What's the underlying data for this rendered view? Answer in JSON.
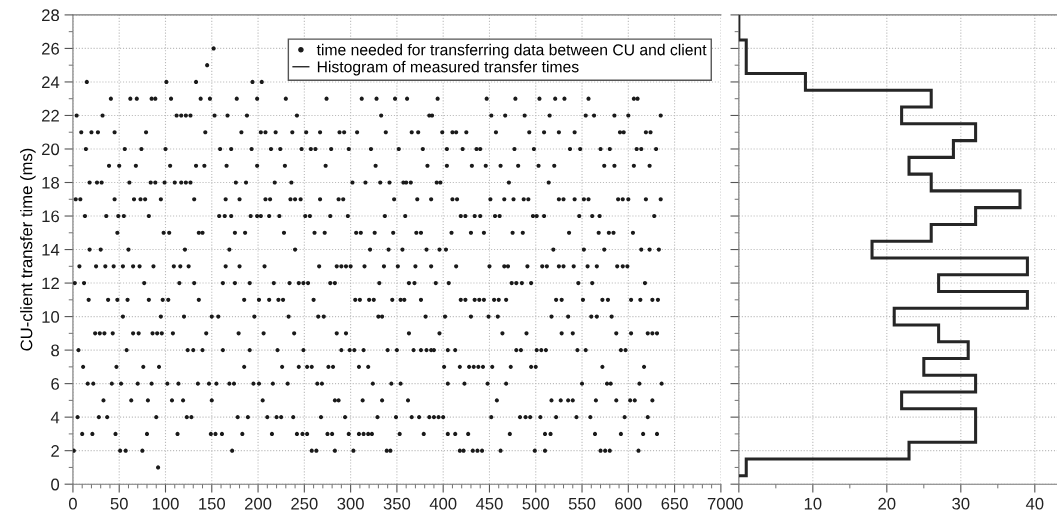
{
  "chart_data": [
    {
      "type": "scatter",
      "ylabel": "CU-client transfer time (ms)",
      "xlim": [
        0,
        700
      ],
      "xticks": [
        0,
        50,
        100,
        150,
        200,
        250,
        300,
        350,
        400,
        450,
        500,
        550,
        600,
        650,
        700
      ],
      "ylim": [
        0,
        28
      ],
      "yticks": [
        0,
        2,
        4,
        6,
        8,
        10,
        12,
        14,
        16,
        18,
        20,
        22,
        24,
        26,
        28
      ],
      "grid": true,
      "legend": "top right",
      "marker": "circle",
      "series": [
        {
          "name": "time needed for transferring data between CU and client",
          "color": "#1a1a1a",
          "x": [
            152,
            145,
            15,
            101,
            133,
            194,
            204,
            41,
            62,
            69,
            85,
            89,
            106,
            138,
            148,
            177,
            199,
            230,
            274,
            312,
            328,
            348,
            361,
            394,
            447,
            478,
            504,
            521,
            531,
            557,
            606,
            610,
            4,
            32,
            112,
            117,
            122,
            127,
            153,
            167,
            188,
            242,
            333,
            385,
            388,
            452,
            467,
            488,
            515,
            554,
            563,
            585,
            600,
            635,
            9,
            20,
            27,
            45,
            79,
            143,
            182,
            203,
            208,
            219,
            237,
            252,
            267,
            288,
            293,
            307,
            338,
            366,
            373,
            399,
            410,
            414,
            425,
            457,
            493,
            509,
            525,
            542,
            591,
            595,
            619,
            624,
            14,
            56,
            74,
            100,
            159,
            171,
            193,
            214,
            224,
            247,
            257,
            262,
            279,
            298,
            322,
            352,
            378,
            404,
            421,
            436,
            440,
            477,
            498,
            537,
            548,
            570,
            580,
            609,
            614,
            630,
            39,
            50,
            68,
            105,
            133,
            142,
            166,
            199,
            229,
            273,
            327,
            383,
            404,
            431,
            446,
            462,
            481,
            503,
            520,
            574,
            585,
            606,
            623,
            18,
            26,
            31,
            61,
            84,
            89,
            99,
            110,
            117,
            122,
            127,
            176,
            187,
            218,
            236,
            302,
            316,
            332,
            342,
            357,
            360,
            365,
            393,
            397,
            471,
            514,
            3,
            8,
            45,
            66,
            73,
            78,
            95,
            131,
            165,
            180,
            208,
            213,
            235,
            240,
            246,
            267,
            287,
            292,
            347,
            372,
            387,
            410,
            415,
            451,
            466,
            476,
            487,
            492,
            525,
            530,
            542,
            552,
            557,
            589,
            594,
            600,
            619,
            635,
            13,
            36,
            49,
            55,
            82,
            158,
            164,
            171,
            192,
            199,
            203,
            212,
            223,
            251,
            256,
            278,
            297,
            337,
            359,
            419,
            424,
            434,
            440,
            456,
            461,
            497,
            501,
            509,
            547,
            561,
            569,
            628,
            48,
            98,
            104,
            136,
            140,
            175,
            186,
            228,
            261,
            272,
            306,
            311,
            326,
            346,
            371,
            376,
            409,
            430,
            444,
            475,
            486,
            536,
            568,
            579,
            584,
            605,
            18,
            30,
            60,
            121,
            169,
            240,
            321,
            341,
            356,
            382,
            396,
            403,
            519,
            552,
            574,
            614,
            623,
            633,
            7,
            25,
            35,
            44,
            54,
            65,
            72,
            87,
            109,
            116,
            125,
            165,
            180,
            207,
            266,
            285,
            290,
            295,
            300,
            315,
            336,
            351,
            370,
            387,
            414,
            450,
            466,
            470,
            491,
            507,
            512,
            525,
            530,
            541,
            556,
            566,
            588,
            594,
            599,
            2,
            12,
            77,
            115,
            131,
            162,
            175,
            191,
            217,
            234,
            244,
            249,
            254,
            278,
            283,
            331,
            363,
            369,
            392,
            406,
            474,
            479,
            485,
            495,
            546,
            561,
            618,
            17,
            38,
            48,
            59,
            82,
            97,
            103,
            136,
            185,
            201,
            212,
            222,
            227,
            260,
            305,
            310,
            320,
            325,
            345,
            354,
            358,
            376,
            419,
            424,
            434,
            439,
            444,
            455,
            460,
            468,
            522,
            528,
            551,
            572,
            578,
            603,
            613,
            626,
            632,
            54,
            95,
            120,
            150,
            157,
            196,
            233,
            265,
            271,
            330,
            334,
            381,
            402,
            430,
            449,
            459,
            517,
            535,
            560,
            566,
            582,
            24,
            29,
            34,
            43,
            65,
            71,
            86,
            91,
            96,
            108,
            144,
            179,
            206,
            239,
            285,
            295,
            363,
            396,
            464,
            490,
            528,
            540,
            587,
            603,
            621,
            626,
            631,
            6,
            58,
            124,
            130,
            140,
            162,
            191,
            221,
            249,
            290,
            299,
            304,
            314,
            340,
            350,
            368,
            376,
            382,
            387,
            390,
            405,
            413,
            479,
            484,
            501,
            506,
            511,
            545,
            554,
            592,
            597,
            11,
            47,
            76,
            93,
            185,
            226,
            244,
            253,
            258,
            276,
            281,
            309,
            319,
            401,
            418,
            428,
            433,
            438,
            443,
            453,
            473,
            495,
            500,
            572,
            617,
            16,
            22,
            42,
            52,
            70,
            85,
            102,
            114,
            135,
            147,
            155,
            169,
            174,
            195,
            201,
            216,
            232,
            264,
            269,
            324,
            344,
            354,
            405,
            423,
            448,
            468,
            550,
            577,
            581,
            612,
            636,
            33,
            63,
            81,
            107,
            119,
            150,
            205,
            283,
            287,
            313,
            334,
            362,
            458,
            517,
            527,
            535,
            540,
            565,
            587,
            602,
            607,
            626,
            5,
            28,
            37,
            90,
            123,
            128,
            178,
            189,
            210,
            220,
            225,
            238,
            268,
            294,
            329,
            349,
            366,
            374,
            385,
            390,
            395,
            400,
            452,
            483,
            489,
            494,
            505,
            522,
            544,
            559,
            596,
            621,
            10,
            21,
            46,
            80,
            113,
            149,
            154,
            161,
            183,
            215,
            242,
            248,
            253,
            275,
            280,
            298,
            309,
            314,
            319,
            323,
            353,
            379,
            405,
            413,
            427,
            472,
            510,
            516,
            564,
            592,
            616,
            631,
            1,
            51,
            57,
            75,
            172,
            258,
            263,
            283,
            303,
            339,
            343,
            418,
            422,
            432,
            437,
            442,
            462,
            499,
            510,
            570,
            575,
            580,
            611,
            92
          ],
          "values": [
            26,
            25,
            24,
            24,
            24,
            24,
            24,
            23,
            23,
            23,
            23,
            23,
            23,
            23,
            23,
            23,
            23,
            23,
            23,
            23,
            23,
            23,
            23,
            23,
            23,
            23,
            23,
            23,
            23,
            23,
            23,
            23,
            22,
            22,
            22,
            22,
            22,
            22,
            22,
            22,
            22,
            22,
            22,
            22,
            22,
            22,
            22,
            22,
            22,
            22,
            22,
            22,
            22,
            22,
            21,
            21,
            21,
            21,
            21,
            21,
            21,
            21,
            21,
            21,
            21,
            21,
            21,
            21,
            21,
            21,
            21,
            21,
            21,
            21,
            21,
            21,
            21,
            21,
            21,
            21,
            21,
            21,
            21,
            21,
            21,
            21,
            20,
            20,
            20,
            20,
            20,
            20,
            20,
            20,
            20,
            20,
            20,
            20,
            20,
            20,
            20,
            20,
            20,
            20,
            20,
            20,
            20,
            20,
            20,
            20,
            20,
            20,
            20,
            20,
            20,
            20,
            19,
            19,
            19,
            19,
            19,
            19,
            19,
            19,
            19,
            19,
            19,
            19,
            19,
            19,
            19,
            19,
            19,
            19,
            19,
            19,
            19,
            19,
            19,
            18,
            18,
            18,
            18,
            18,
            18,
            18,
            18,
            18,
            18,
            18,
            18,
            18,
            18,
            18,
            18,
            18,
            18,
            18,
            18,
            18,
            18,
            18,
            18,
            18,
            18,
            17,
            17,
            17,
            17,
            17,
            17,
            17,
            17,
            17,
            17,
            17,
            17,
            17,
            17,
            17,
            17,
            17,
            17,
            17,
            17,
            17,
            17,
            17,
            17,
            17,
            17,
            17,
            17,
            17,
            17,
            17,
            17,
            17,
            17,
            17,
            17,
            17,
            17,
            16,
            16,
            16,
            16,
            16,
            16,
            16,
            16,
            16,
            16,
            16,
            16,
            16,
            16,
            16,
            16,
            16,
            16,
            16,
            16,
            16,
            16,
            16,
            16,
            16,
            16,
            16,
            16,
            16,
            16,
            16,
            16,
            15,
            15,
            15,
            15,
            15,
            15,
            15,
            15,
            15,
            15,
            15,
            15,
            15,
            15,
            15,
            15,
            15,
            15,
            15,
            15,
            15,
            15,
            15,
            15,
            15,
            15,
            14,
            14,
            14,
            14,
            14,
            14,
            14,
            14,
            14,
            14,
            14,
            14,
            14,
            14,
            14,
            14,
            14,
            14,
            13,
            13,
            13,
            13,
            13,
            13,
            13,
            13,
            13,
            13,
            13,
            13,
            13,
            13,
            13,
            13,
            13,
            13,
            13,
            13,
            13,
            13,
            13,
            13,
            13,
            13,
            13,
            13,
            13,
            13,
            13,
            13,
            13,
            13,
            13,
            13,
            13,
            13,
            13,
            12,
            12,
            12,
            12,
            12,
            12,
            12,
            12,
            12,
            12,
            12,
            12,
            12,
            12,
            12,
            12,
            12,
            12,
            12,
            12,
            12,
            12,
            12,
            12,
            12,
            12,
            12,
            11,
            11,
            11,
            11,
            11,
            11,
            11,
            11,
            11,
            11,
            11,
            11,
            11,
            11,
            11,
            11,
            11,
            11,
            11,
            11,
            11,
            11,
            11,
            11,
            11,
            11,
            11,
            11,
            11,
            11,
            11,
            11,
            11,
            11,
            11,
            11,
            11,
            11,
            11,
            10,
            10,
            10,
            10,
            10,
            10,
            10,
            10,
            10,
            10,
            10,
            10,
            10,
            10,
            10,
            10,
            10,
            10,
            10,
            10,
            10,
            9,
            9,
            9,
            9,
            9,
            9,
            9,
            9,
            9,
            9,
            9,
            9,
            9,
            9,
            9,
            9,
            9,
            9,
            9,
            9,
            9,
            9,
            9,
            9,
            9,
            9,
            9,
            8,
            8,
            8,
            8,
            8,
            8,
            8,
            8,
            8,
            8,
            8,
            8,
            8,
            8,
            8,
            8,
            8,
            8,
            8,
            8,
            8,
            8,
            8,
            8,
            8,
            8,
            8,
            8,
            8,
            8,
            8,
            7,
            7,
            7,
            7,
            7,
            7,
            7,
            7,
            7,
            7,
            7,
            7,
            7,
            7,
            7,
            7,
            7,
            7,
            7,
            7,
            7,
            7,
            7,
            7,
            7,
            6,
            6,
            6,
            6,
            6,
            6,
            6,
            6,
            6,
            6,
            6,
            6,
            6,
            6,
            6,
            6,
            6,
            6,
            6,
            6,
            6,
            6,
            6,
            6,
            6,
            6,
            6,
            6,
            6,
            6,
            6,
            5,
            5,
            5,
            5,
            5,
            5,
            5,
            5,
            5,
            5,
            5,
            5,
            5,
            5,
            5,
            5,
            5,
            5,
            5,
            5,
            5,
            5,
            4,
            4,
            4,
            4,
            4,
            4,
            4,
            4,
            4,
            4,
            4,
            4,
            4,
            4,
            4,
            4,
            4,
            4,
            4,
            4,
            4,
            4,
            4,
            4,
            4,
            4,
            4,
            4,
            4,
            4,
            4,
            4,
            3,
            3,
            3,
            3,
            3,
            3,
            3,
            3,
            3,
            3,
            3,
            3,
            3,
            3,
            3,
            3,
            3,
            3,
            3,
            3,
            3,
            3,
            3,
            3,
            3,
            3,
            3,
            3,
            3,
            3,
            3,
            3,
            2,
            2,
            2,
            2,
            2,
            2,
            2,
            2,
            2,
            2,
            2,
            2,
            2,
            2,
            2,
            2,
            2,
            2,
            2,
            2,
            2,
            2,
            2,
            1
          ]
        }
      ]
    },
    {
      "type": "histogram",
      "orientation": "horizontal",
      "xlim": [
        0,
        43
      ],
      "xticks": [
        0,
        10,
        20,
        30,
        40
      ],
      "ylim": [
        0,
        28
      ],
      "yticks": [
        0,
        2,
        4,
        6,
        8,
        10,
        12,
        14,
        16,
        18,
        20,
        22,
        24,
        26,
        28
      ],
      "tick_labels": "x",
      "grid": true,
      "bins": [
        0.5,
        1.5,
        2.5,
        3.5,
        4.5,
        5.5,
        6.5,
        7.5,
        8.5,
        9.5,
        10.5,
        11.5,
        12.5,
        13.5,
        14.5,
        15.5,
        16.5,
        17.5,
        18.5,
        19.5,
        20.5,
        21.5,
        22.5,
        23.5,
        24.5,
        25.5,
        26.5,
        28
      ],
      "series": [
        {
          "name": "Histogram of measured transfer times",
          "color": "#262626",
          "values": [
            1,
            23,
            32,
            32,
            22,
            32,
            25,
            31,
            27,
            21,
            39,
            27,
            39,
            18,
            26,
            32,
            38,
            26,
            23,
            29,
            32,
            22,
            26,
            9,
            1,
            1,
            0
          ]
        }
      ]
    }
  ]
}
